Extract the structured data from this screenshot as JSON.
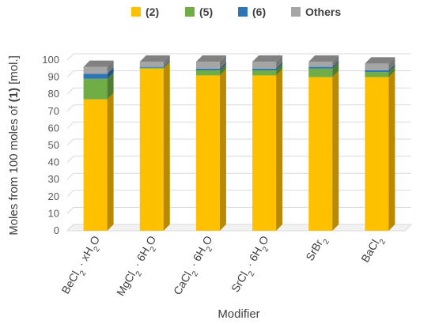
{
  "chart_data": {
    "type": "bar",
    "stacked": true,
    "three_d": true,
    "xlabel": "Modifier",
    "ylabel_parts": [
      {
        "text": "Moles from 100 moles of ",
        "bold": false
      },
      {
        "text": "(1)",
        "bold": true
      },
      {
        "text": " [mol.]",
        "bold": false
      }
    ],
    "ylim": [
      0,
      100
    ],
    "yticks": [
      0,
      10,
      20,
      30,
      40,
      50,
      60,
      70,
      80,
      90,
      100
    ],
    "grid": true,
    "legend_position": "top",
    "categories": [
      {
        "base": "BeCl",
        "sub1": "2",
        "mid": " · xH",
        "sub2": "2",
        "tail": "O"
      },
      {
        "base": "MgCl",
        "sub1": "2",
        "mid": " · 6H",
        "sub2": "2",
        "tail": "O"
      },
      {
        "base": "CaCl",
        "sub1": "2",
        "mid": " · 6H",
        "sub2": "2",
        "tail": "O"
      },
      {
        "base": "SrCl",
        "sub1": "2",
        "mid": " · 6H",
        "sub2": "2",
        "tail": "O"
      },
      {
        "base": "SrBr",
        "sub1": "2",
        "mid": "",
        "sub2": "",
        "tail": ""
      },
      {
        "base": "BaCl",
        "sub1": "2",
        "mid": "",
        "sub2": "",
        "tail": ""
      }
    ],
    "series": [
      {
        "name": "(2)",
        "color": "#FFC000",
        "values": [
          77,
          95,
          91,
          91,
          90,
          90
        ]
      },
      {
        "name": "(5)",
        "color": "#70AD47",
        "values": [
          12,
          0.5,
          3,
          3,
          5,
          3
        ]
      },
      {
        "name": "(6)",
        "color": "#2E75B6",
        "values": [
          3,
          0.5,
          1,
          1,
          1,
          1
        ]
      },
      {
        "name": "Others",
        "color": "#A5A5A5",
        "values": [
          4,
          3,
          4,
          4,
          3,
          4
        ]
      }
    ]
  }
}
